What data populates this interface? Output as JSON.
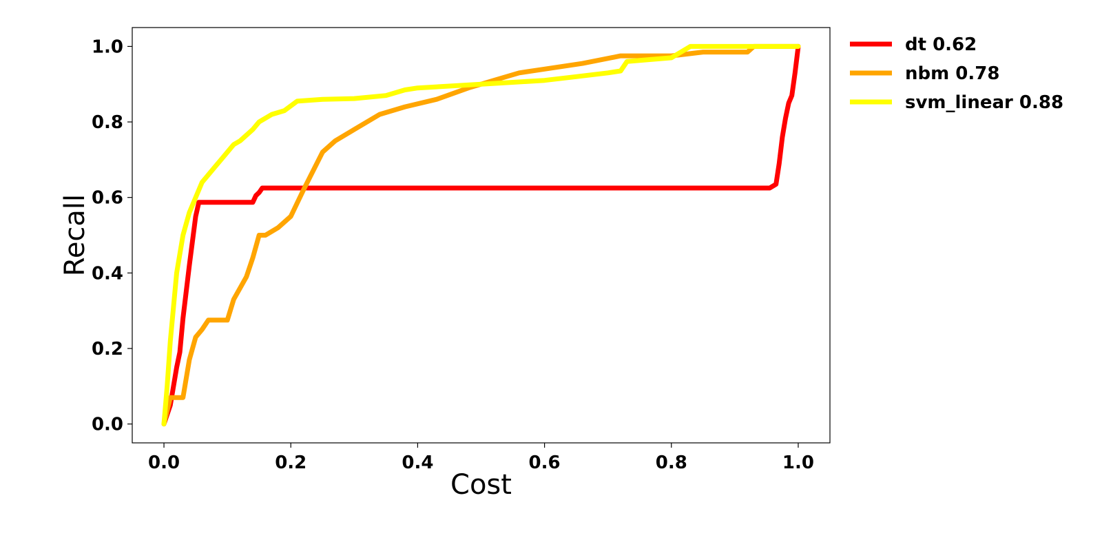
{
  "chart_data": {
    "type": "line",
    "xlabel": "Cost",
    "ylabel": "Recall",
    "xlim": [
      -0.05,
      1.05
    ],
    "ylim": [
      -0.05,
      1.05
    ],
    "xticks": [
      0.0,
      0.2,
      0.4,
      0.6,
      0.8,
      1.0
    ],
    "yticks": [
      0.0,
      0.2,
      0.4,
      0.6,
      0.8,
      1.0
    ],
    "xtick_labels": [
      "0.0",
      "0.2",
      "0.4",
      "0.6",
      "0.8",
      "1.0"
    ],
    "ytick_labels": [
      "0.0",
      "0.2",
      "0.4",
      "0.6",
      "0.8",
      "1.0"
    ],
    "grid": false,
    "legend_position": "outside-right-top",
    "series": [
      {
        "name": "dt 0.62",
        "color": "#ff0000",
        "x": [
          0.0,
          0.01,
          0.02,
          0.025,
          0.03,
          0.04,
          0.05,
          0.055,
          0.14,
          0.145,
          0.15,
          0.155,
          0.5,
          0.955,
          0.965,
          0.97,
          0.975,
          0.98,
          0.985,
          0.99,
          0.995,
          1.0
        ],
        "y": [
          0.0,
          0.05,
          0.15,
          0.19,
          0.28,
          0.42,
          0.55,
          0.587,
          0.587,
          0.605,
          0.613,
          0.625,
          0.625,
          0.625,
          0.635,
          0.69,
          0.76,
          0.81,
          0.85,
          0.87,
          0.93,
          1.0
        ]
      },
      {
        "name": "nbm 0.78",
        "color": "#ffa500",
        "x": [
          0.0,
          0.01,
          0.03,
          0.04,
          0.05,
          0.06,
          0.07,
          0.1,
          0.11,
          0.12,
          0.13,
          0.14,
          0.15,
          0.16,
          0.18,
          0.2,
          0.22,
          0.25,
          0.27,
          0.3,
          0.34,
          0.38,
          0.43,
          0.48,
          0.52,
          0.56,
          0.6,
          0.66,
          0.72,
          0.8,
          0.85,
          0.92,
          0.93,
          1.0
        ],
        "y": [
          0.0,
          0.07,
          0.07,
          0.17,
          0.23,
          0.25,
          0.275,
          0.275,
          0.33,
          0.36,
          0.39,
          0.44,
          0.5,
          0.5,
          0.52,
          0.55,
          0.62,
          0.72,
          0.75,
          0.78,
          0.82,
          0.84,
          0.86,
          0.89,
          0.91,
          0.93,
          0.94,
          0.955,
          0.975,
          0.975,
          0.985,
          0.985,
          1.0,
          1.0
        ]
      },
      {
        "name": "svm_linear 0.88",
        "color": "#ffff00",
        "x": [
          0.0,
          0.005,
          0.01,
          0.02,
          0.03,
          0.04,
          0.05,
          0.06,
          0.07,
          0.08,
          0.09,
          0.1,
          0.11,
          0.12,
          0.14,
          0.15,
          0.17,
          0.19,
          0.21,
          0.25,
          0.3,
          0.35,
          0.38,
          0.4,
          0.45,
          0.5,
          0.55,
          0.6,
          0.65,
          0.7,
          0.72,
          0.73,
          0.8,
          0.82,
          0.83,
          1.0
        ],
        "y": [
          0.0,
          0.1,
          0.22,
          0.4,
          0.5,
          0.56,
          0.6,
          0.64,
          0.66,
          0.68,
          0.7,
          0.72,
          0.74,
          0.75,
          0.78,
          0.8,
          0.82,
          0.83,
          0.855,
          0.86,
          0.862,
          0.87,
          0.885,
          0.89,
          0.895,
          0.9,
          0.905,
          0.91,
          0.92,
          0.93,
          0.935,
          0.96,
          0.97,
          0.99,
          1.0,
          1.0
        ]
      }
    ]
  }
}
